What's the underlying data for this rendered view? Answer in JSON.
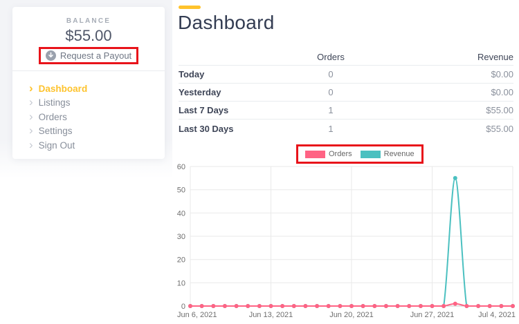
{
  "sidebar": {
    "balance_label": "BALANCE",
    "balance_amount": "$55.00",
    "payout_button_label": "Request a Payout",
    "nav_items": [
      {
        "label": "Dashboard",
        "active": true
      },
      {
        "label": "Listings",
        "active": false
      },
      {
        "label": "Orders",
        "active": false
      },
      {
        "label": "Settings",
        "active": false
      },
      {
        "label": "Sign Out",
        "active": false
      }
    ]
  },
  "main": {
    "title": "Dashboard",
    "summary_table": {
      "col_orders": "Orders",
      "col_revenue": "Revenue",
      "rows": [
        {
          "label": "Today",
          "orders": "0",
          "revenue": "$0.00"
        },
        {
          "label": "Yesterday",
          "orders": "0",
          "revenue": "$0.00"
        },
        {
          "label": "Last 7 Days",
          "orders": "1",
          "revenue": "$55.00"
        },
        {
          "label": "Last 30 Days",
          "orders": "1",
          "revenue": "$55.00"
        }
      ]
    }
  },
  "chart_data": {
    "type": "line",
    "x": [
      "Jun 6",
      "Jun 7",
      "Jun 8",
      "Jun 9",
      "Jun 10",
      "Jun 11",
      "Jun 12",
      "Jun 13",
      "Jun 14",
      "Jun 15",
      "Jun 16",
      "Jun 17",
      "Jun 18",
      "Jun 19",
      "Jun 20",
      "Jun 21",
      "Jun 22",
      "Jun 23",
      "Jun 24",
      "Jun 25",
      "Jun 26",
      "Jun 27",
      "Jun 28",
      "Jun 29",
      "Jun 30",
      "Jul 1",
      "Jul 2",
      "Jul 3",
      "Jul 4"
    ],
    "series": [
      {
        "name": "Orders",
        "color": "#FF6384",
        "values": [
          0,
          0,
          0,
          0,
          0,
          0,
          0,
          0,
          0,
          0,
          0,
          0,
          0,
          0,
          0,
          0,
          0,
          0,
          0,
          0,
          0,
          0,
          0,
          1,
          0,
          0,
          0,
          0,
          0
        ]
      },
      {
        "name": "Revenue",
        "color": "#4BC0C0",
        "values": [
          0,
          0,
          0,
          0,
          0,
          0,
          0,
          0,
          0,
          0,
          0,
          0,
          0,
          0,
          0,
          0,
          0,
          0,
          0,
          0,
          0,
          0,
          0,
          55,
          0,
          0,
          0,
          0,
          0
        ]
      }
    ],
    "ylim": [
      0,
      60
    ],
    "yticks": [
      0,
      10,
      20,
      30,
      40,
      50,
      60
    ],
    "xtick_indices": [
      0,
      7,
      14,
      21,
      28
    ],
    "xtick_labels": [
      "Jun 6, 2021",
      "Jun 13, 2021",
      "Jun 20, 2021",
      "Jun 27, 2021",
      "Jul 4, 2021"
    ],
    "legend_position": "top",
    "grid": true
  },
  "annotations": {
    "highlight_color": "#E8131A",
    "highlighted_elements": [
      "request-payout-button",
      "chart-legend"
    ]
  },
  "colors": {
    "accent_yellow": "#FFC32C",
    "orders_pink": "#FF6384",
    "revenue_teal": "#4BC0C0"
  }
}
